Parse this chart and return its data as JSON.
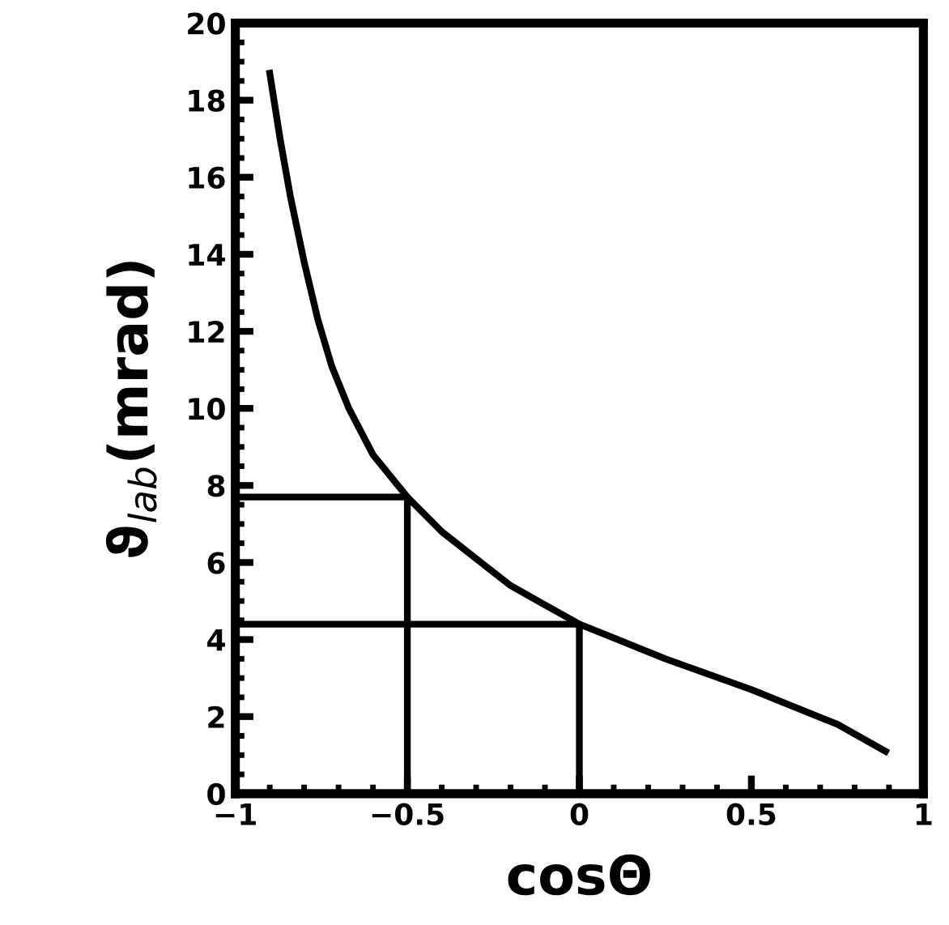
{
  "chart_data": {
    "type": "line",
    "xlabel": "cosΘ",
    "ylabel": "ϑ$_{lab}$(mrad)",
    "xlim": [
      -1,
      1
    ],
    "ylim": [
      0,
      20
    ],
    "xticks": [
      {
        "value": -1,
        "label": "−1"
      },
      {
        "value": -0.5,
        "label": "−0.5"
      },
      0,
      0.5,
      1
    ],
    "yticks": [
      0,
      2,
      4,
      6,
      8,
      10,
      12,
      14,
      16,
      18,
      20
    ],
    "grid": false,
    "marker": "none",
    "line_style": "solid",
    "series": [
      {
        "color": "#000000",
        "x": [
          -0.9,
          -0.87,
          -0.84,
          -0.8,
          -0.76,
          -0.72,
          -0.67,
          -0.6,
          -0.5,
          -0.4,
          -0.3,
          -0.2,
          -0.1,
          0,
          0.25,
          0.5,
          0.75,
          0.89
        ],
        "values": [
          18.7,
          17,
          15.5,
          13.8,
          12.3,
          11.1,
          10,
          8.8,
          7.7,
          6.8,
          6.1,
          5.4,
          4.9,
          4.4,
          3.5,
          2.7,
          1.8,
          1.1
        ]
      },
      {
        "color": "#000000",
        "x": [
          -1,
          -0.5,
          -0.5
        ],
        "values": [
          7.7,
          7.7,
          0
        ]
      },
      {
        "color": "#000000",
        "x": [
          -1,
          0,
          0
        ],
        "values": [
          4.4,
          4.4,
          0
        ]
      }
    ]
  }
}
